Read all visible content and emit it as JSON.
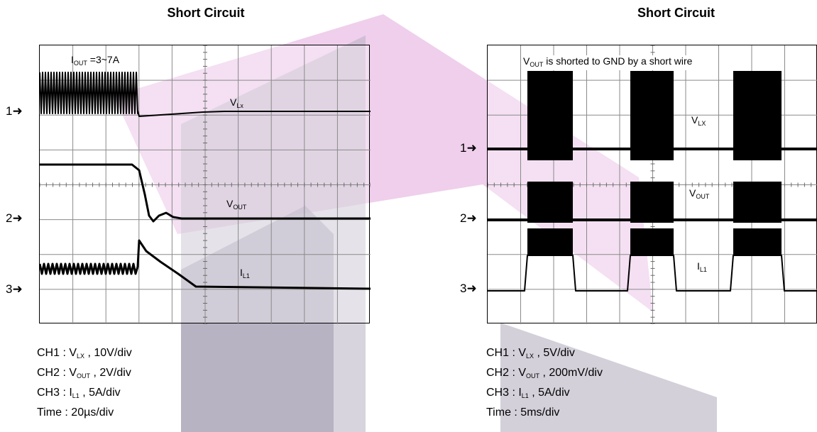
{
  "chart_data": [
    {
      "type": "line",
      "title": "Short Circuit",
      "annotation": {
        "prefix": "I",
        "sub": "OUT",
        "suffix": " =3~7A"
      },
      "series": [
        {
          "channel": "1",
          "label": {
            "prefix": "V",
            "sub": "Lx"
          }
        },
        {
          "channel": "2",
          "label": {
            "prefix": "V",
            "sub": "OUT"
          }
        },
        {
          "channel": "3",
          "label": {
            "prefix": "I",
            "sub": "L1"
          }
        }
      ],
      "settings": [
        {
          "prefix": "CH1 : V",
          "sub": "LX",
          "suffix": " , 10V/div"
        },
        {
          "prefix": "CH2 : V",
          "sub": "OUT",
          "suffix": " , 2V/div"
        },
        {
          "prefix": "CH3 : I",
          "sub": "L1",
          "suffix": " , 5A/div"
        },
        {
          "prefix": "Time : 20µs/div",
          "sub": "",
          "suffix": ""
        }
      ],
      "grid": true,
      "x_divisions": 10,
      "y_divisions": 8
    },
    {
      "type": "line",
      "title": "Short Circuit",
      "annotation": {
        "prefix": "V",
        "sub": "OUT",
        "suffix": " is shorted to GND by a short wire"
      },
      "series": [
        {
          "channel": "1",
          "label": {
            "prefix": "V",
            "sub": "LX"
          }
        },
        {
          "channel": "2",
          "label": {
            "prefix": "V",
            "sub": "OUT"
          }
        },
        {
          "channel": "3",
          "label": {
            "prefix": "I",
            "sub": "L1"
          }
        }
      ],
      "settings": [
        {
          "prefix": "CH1 : V",
          "sub": "LX",
          "suffix": " , 5V/div"
        },
        {
          "prefix": "CH2 : V",
          "sub": "OUT",
          "suffix": " , 200mV/div"
        },
        {
          "prefix": "CH3 : I",
          "sub": "L1",
          "suffix": " , 5A/div"
        },
        {
          "prefix": "Time : 5ms/div",
          "sub": "",
          "suffix": ""
        }
      ],
      "grid": true,
      "x_divisions": 10,
      "y_divisions": 8
    }
  ],
  "watermark": {
    "colors": [
      "#c7a8cc",
      "#b6b0c2",
      "#e9bfe6"
    ]
  }
}
